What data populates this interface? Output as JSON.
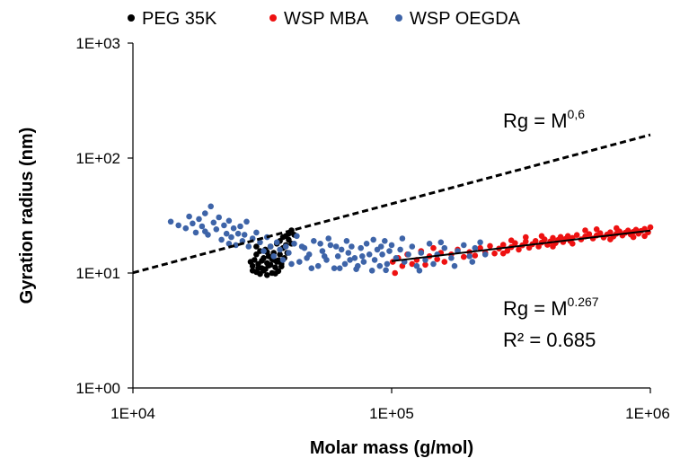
{
  "chart_data": {
    "type": "scatter",
    "x_scale": "log",
    "y_scale": "log",
    "xlim": [
      10000,
      1000000
    ],
    "ylim": [
      1,
      1000
    ],
    "xlabel": "Molar mass (g/mol)",
    "ylabel": "Gyration radius (nm)",
    "x_ticks": [
      "1E+04",
      "1E+05",
      "1E+06"
    ],
    "y_ticks": [
      "1E+00",
      "1E+01",
      "1E+02",
      "1E+03"
    ],
    "grid": false,
    "legend_position": "top",
    "series": [
      {
        "name": "PEG 35K",
        "color": "#000000",
        "points": [
          [
            29000,
            11.5
          ],
          [
            29500,
            13.0
          ],
          [
            30000,
            10.2
          ],
          [
            30000,
            14.5
          ],
          [
            30500,
            12.0
          ],
          [
            31000,
            9.8
          ],
          [
            31000,
            15.5
          ],
          [
            31500,
            11.0
          ],
          [
            32000,
            13.5
          ],
          [
            32000,
            10.5
          ],
          [
            32500,
            16.0
          ],
          [
            33000,
            12.2
          ],
          [
            33000,
            9.6
          ],
          [
            33500,
            14.0
          ],
          [
            34000,
            11.8
          ],
          [
            34000,
            17.0
          ],
          [
            34500,
            10.0
          ],
          [
            35000,
            13.0
          ],
          [
            35000,
            15.0
          ],
          [
            35500,
            11.2
          ],
          [
            36000,
            18.0
          ],
          [
            36000,
            12.5
          ],
          [
            36500,
            10.4
          ],
          [
            37000,
            14.5
          ],
          [
            37000,
            19.0
          ],
          [
            37500,
            12.0
          ],
          [
            38000,
            16.5
          ],
          [
            38000,
            20.5
          ],
          [
            38500,
            13.5
          ],
          [
            39000,
            21.0
          ],
          [
            39000,
            17.5
          ],
          [
            39500,
            15.0
          ],
          [
            40000,
            22.0
          ],
          [
            40000,
            19.5
          ],
          [
            41000,
            23.5
          ],
          [
            41000,
            18.0
          ],
          [
            42000,
            21.5
          ],
          [
            30500,
            11.0
          ],
          [
            31500,
            12.8
          ],
          [
            32500,
            10.8
          ],
          [
            33500,
            11.6
          ],
          [
            34500,
            13.2
          ],
          [
            35500,
            9.9
          ],
          [
            36500,
            12.9
          ],
          [
            37500,
            11.4
          ],
          [
            28500,
            12.5
          ],
          [
            29000,
            10.5
          ],
          [
            33000,
            15.2
          ],
          [
            30000,
            17.0
          ]
        ]
      },
      {
        "name": "WSP MBA",
        "color": "#ee1111",
        "points": [
          [
            101000,
            12.5
          ],
          [
            103000,
            10.0
          ],
          [
            106000,
            13.5
          ],
          [
            110000,
            11.5
          ],
          [
            115000,
            14.5
          ],
          [
            120000,
            12.0
          ],
          [
            125000,
            13.0
          ],
          [
            130000,
            15.5
          ],
          [
            135000,
            11.8
          ],
          [
            140000,
            14.0
          ],
          [
            145000,
            16.5
          ],
          [
            150000,
            13.2
          ],
          [
            155000,
            15.0
          ],
          [
            160000,
            12.5
          ],
          [
            170000,
            14.5
          ],
          [
            180000,
            16.0
          ],
          [
            190000,
            13.8
          ],
          [
            200000,
            15.2
          ],
          [
            210000,
            14.2
          ],
          [
            220000,
            16.5
          ],
          [
            230000,
            15.0
          ],
          [
            240000,
            17.2
          ],
          [
            250000,
            14.8
          ],
          [
            260000,
            16.3
          ],
          [
            270000,
            17.6
          ],
          [
            280000,
            15.6
          ],
          [
            290000,
            16.8
          ],
          [
            300000,
            18.2
          ],
          [
            310000,
            16.0
          ],
          [
            320000,
            17.4
          ],
          [
            330000,
            18.8
          ],
          [
            340000,
            16.6
          ],
          [
            350000,
            17.8
          ],
          [
            360000,
            19.0
          ],
          [
            370000,
            17.0
          ],
          [
            380000,
            18.4
          ],
          [
            390000,
            19.6
          ],
          [
            400000,
            17.6
          ],
          [
            410000,
            18.8
          ],
          [
            420000,
            20.2
          ],
          [
            430000,
            18.2
          ],
          [
            440000,
            19.4
          ],
          [
            450000,
            20.6
          ],
          [
            460000,
            18.6
          ],
          [
            470000,
            19.8
          ],
          [
            480000,
            21.0
          ],
          [
            490000,
            19.0
          ],
          [
            500000,
            20.2
          ],
          [
            520000,
            21.4
          ],
          [
            540000,
            19.6
          ],
          [
            560000,
            20.8
          ],
          [
            580000,
            21.8
          ],
          [
            600000,
            20.0
          ],
          [
            620000,
            21.2
          ],
          [
            640000,
            22.2
          ],
          [
            660000,
            20.4
          ],
          [
            680000,
            21.6
          ],
          [
            700000,
            22.6
          ],
          [
            720000,
            20.8
          ],
          [
            740000,
            22.0
          ],
          [
            760000,
            23.0
          ],
          [
            780000,
            21.2
          ],
          [
            800000,
            22.4
          ],
          [
            820000,
            23.4
          ],
          [
            840000,
            21.6
          ],
          [
            860000,
            22.8
          ],
          [
            880000,
            23.8
          ],
          [
            900000,
            22.0
          ],
          [
            920000,
            23.2
          ],
          [
            950000,
            24.2
          ],
          [
            980000,
            22.6
          ],
          [
            1000000,
            25.0
          ],
          [
            330000,
            20.5
          ],
          [
            420000,
            17.0
          ],
          [
            560000,
            23.5
          ],
          [
            700000,
            19.6
          ],
          [
            860000,
            20.5
          ],
          [
            270000,
            14.8
          ],
          [
            380000,
            21.0
          ],
          [
            500000,
            18.0
          ],
          [
            620000,
            24.0
          ],
          [
            740000,
            24.6
          ],
          [
            950000,
            21.0
          ],
          [
            290000,
            19.2
          ]
        ]
      },
      {
        "name": "WSP OEGDA",
        "color": "#3e64a8",
        "points": [
          [
            14000,
            28.0
          ],
          [
            15000,
            26.0
          ],
          [
            16000,
            24.5
          ],
          [
            16500,
            31.0
          ],
          [
            17000,
            27.0
          ],
          [
            17500,
            22.5
          ],
          [
            18000,
            29.5
          ],
          [
            18500,
            25.5
          ],
          [
            19000,
            33.0
          ],
          [
            19500,
            21.5
          ],
          [
            20000,
            38.0
          ],
          [
            20500,
            27.5
          ],
          [
            21000,
            24.0
          ],
          [
            21500,
            30.5
          ],
          [
            22000,
            19.5
          ],
          [
            22500,
            26.0
          ],
          [
            23000,
            22.0
          ],
          [
            23500,
            28.5
          ],
          [
            24000,
            20.5
          ],
          [
            24500,
            24.5
          ],
          [
            25000,
            17.5
          ],
          [
            25500,
            22.0
          ],
          [
            26000,
            25.5
          ],
          [
            26500,
            19.0
          ],
          [
            27000,
            21.5
          ],
          [
            28000,
            17.0
          ],
          [
            29000,
            20.0
          ],
          [
            30000,
            22.5
          ],
          [
            31000,
            18.5
          ],
          [
            32000,
            15.5
          ],
          [
            33000,
            20.5
          ],
          [
            34000,
            17.0
          ],
          [
            35000,
            14.0
          ],
          [
            36000,
            18.5
          ],
          [
            37000,
            16.0
          ],
          [
            38000,
            13.0
          ],
          [
            39000,
            17.0
          ],
          [
            40000,
            15.0
          ],
          [
            42000,
            18.0
          ],
          [
            44000,
            12.5
          ],
          [
            46000,
            16.5
          ],
          [
            48000,
            14.5
          ],
          [
            50000,
            19.0
          ],
          [
            52000,
            11.5
          ],
          [
            54000,
            15.5
          ],
          [
            56000,
            13.0
          ],
          [
            58000,
            17.5
          ],
          [
            60000,
            11.0
          ],
          [
            62000,
            14.0
          ],
          [
            64000,
            16.0
          ],
          [
            66000,
            12.0
          ],
          [
            68000,
            15.0
          ],
          [
            70000,
            17.0
          ],
          [
            72000,
            13.5
          ],
          [
            74000,
            11.5
          ],
          [
            76000,
            16.5
          ],
          [
            78000,
            12.5
          ],
          [
            80000,
            18.0
          ],
          [
            82000,
            14.5
          ],
          [
            84000,
            10.5
          ],
          [
            86000,
            13.0
          ],
          [
            88000,
            16.0
          ],
          [
            90000,
            11.5
          ],
          [
            92000,
            14.5
          ],
          [
            94000,
            19.0
          ],
          [
            96000,
            12.0
          ],
          [
            98000,
            15.5
          ],
          [
            100000,
            17.5
          ],
          [
            104000,
            13.5
          ],
          [
            108000,
            16.0
          ],
          [
            112000,
            12.5
          ],
          [
            116000,
            14.5
          ],
          [
            120000,
            17.0
          ],
          [
            125000,
            11.5
          ],
          [
            130000,
            15.0
          ],
          [
            135000,
            13.0
          ],
          [
            140000,
            18.0
          ],
          [
            145000,
            12.0
          ],
          [
            150000,
            14.5
          ],
          [
            160000,
            16.5
          ],
          [
            170000,
            13.5
          ],
          [
            180000,
            15.5
          ],
          [
            190000,
            17.5
          ],
          [
            200000,
            14.0
          ],
          [
            210000,
            16.5
          ],
          [
            220000,
            18.5
          ],
          [
            230000,
            14.5
          ],
          [
            43000,
            21.0
          ],
          [
            47000,
            13.5
          ],
          [
            53000,
            18.0
          ],
          [
            57000,
            20.0
          ],
          [
            63000,
            11.0
          ],
          [
            67000,
            19.0
          ],
          [
            73000,
            10.8
          ],
          [
            85000,
            19.5
          ],
          [
            95000,
            10.6
          ],
          [
            110000,
            20.0
          ],
          [
            128000,
            10.5
          ],
          [
            155000,
            18.5
          ],
          [
            175000,
            11.5
          ],
          [
            205000,
            12.5
          ],
          [
            27500,
            28.0
          ],
          [
            23500,
            18.0
          ],
          [
            19000,
            23.0
          ],
          [
            41000,
            12.0
          ],
          [
            45000,
            17.0
          ],
          [
            49000,
            11.0
          ],
          [
            55000,
            14.0
          ],
          [
            61000,
            17.0
          ],
          [
            69000,
            13.0
          ],
          [
            77000,
            14.0
          ],
          [
            91000,
            17.0
          ]
        ]
      }
    ],
    "trendlines": [
      {
        "style": "dashed",
        "exponent": 0.6,
        "prefactor": 0.04,
        "x_range": [
          10000,
          1000000
        ]
      },
      {
        "style": "solid",
        "exponent": 0.267,
        "prefactor": 0.586,
        "x_range": [
          100000,
          1000000
        ]
      }
    ],
    "annotations": {
      "fit1": {
        "base": "Rg = M",
        "sup": "0,6"
      },
      "fit2": {
        "base": "Rg = M",
        "sup": "0.267"
      },
      "r2": "R² = 0.685"
    }
  }
}
